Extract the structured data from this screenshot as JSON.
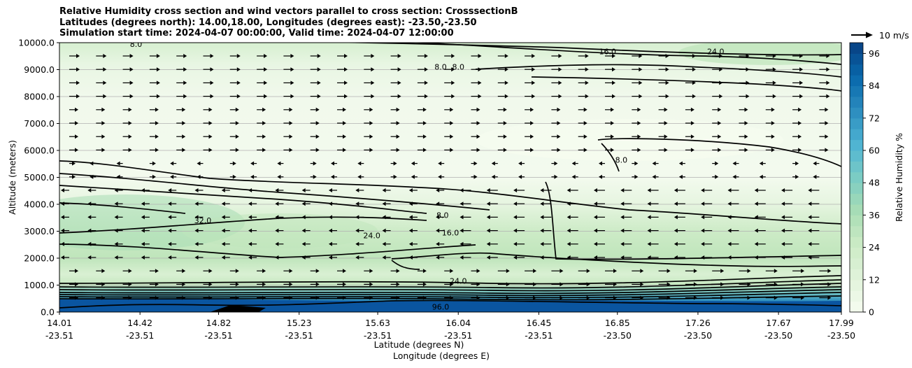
{
  "chart_data": {
    "type": "heatmap",
    "title_lines": [
      "Relative Humidity cross section and wind vectors parallel to cross section: CrosssectionB",
      "Latitudes (degrees north): 14.00,18.00, Longitudes (degrees east): -23.50,-23.50",
      "Simulation start time: 2024-04-07 00:00:00, Valid time: 2024-04-07 12:00:00"
    ],
    "ylabel": "Altitude (meters)",
    "xlabel_lat": "Latitude (degrees N)",
    "xlabel_lon": "Longitude (degrees E)",
    "ylim": [
      0,
      10000
    ],
    "y_ticks": [
      "0.0",
      "1000.0",
      "2000.0",
      "3000.0",
      "4000.0",
      "5000.0",
      "6000.0",
      "7000.0",
      "8000.0",
      "9000.0",
      "10000.0"
    ],
    "y_tick_values": [
      0,
      1000,
      2000,
      3000,
      4000,
      5000,
      6000,
      7000,
      8000,
      9000,
      10000
    ],
    "xlim": [
      14.01,
      17.99
    ],
    "x_ticks": [
      {
        "lat": "14.01",
        "lon": "-23.51",
        "value": 14.01
      },
      {
        "lat": "14.42",
        "lon": "-23.51",
        "value": 14.42
      },
      {
        "lat": "14.82",
        "lon": "-23.51",
        "value": 14.82
      },
      {
        "lat": "15.23",
        "lon": "-23.51",
        "value": 15.23
      },
      {
        "lat": "15.63",
        "lon": "-23.51",
        "value": 15.63
      },
      {
        "lat": "16.04",
        "lon": "-23.51",
        "value": 16.04
      },
      {
        "lat": "16.45",
        "lon": "-23.51",
        "value": 16.45
      },
      {
        "lat": "16.85",
        "lon": "-23.50",
        "value": 16.85
      },
      {
        "lat": "17.26",
        "lon": "-23.50",
        "value": 17.26
      },
      {
        "lat": "17.67",
        "lon": "-23.50",
        "value": 17.67
      },
      {
        "lat": "17.99",
        "lon": "-23.50",
        "value": 17.99
      }
    ],
    "grid": "horizontal",
    "colorbar": {
      "label": "Relative Humidity %",
      "ticks": [
        "0",
        "12",
        "24",
        "36",
        "48",
        "60",
        "72",
        "84",
        "96"
      ],
      "tick_values": [
        0,
        12,
        24,
        36,
        48,
        60,
        72,
        84,
        96
      ],
      "range": [
        0,
        100
      ],
      "colormap": "GnBu",
      "colors": [
        "#f7fcf0",
        "#e0f3db",
        "#ccebc5",
        "#a8ddb5",
        "#7bccc4",
        "#4eb3d3",
        "#2b8cbe",
        "#0868ac",
        "#084081"
      ]
    },
    "quiver_key": "10 m/s",
    "contour_labels": [
      {
        "text": "8.0",
        "lat": 14.4,
        "alt": 9950
      },
      {
        "text": "16.0",
        "lat": 16.8,
        "alt": 9680
      },
      {
        "text": "24.0",
        "lat": 17.35,
        "alt": 9680
      },
      {
        "text": "8.0",
        "lat": 15.95,
        "alt": 9100
      },
      {
        "text": "8.0",
        "lat": 16.04,
        "alt": 9100
      },
      {
        "text": "8.0",
        "lat": 16.87,
        "alt": 5650
      },
      {
        "text": "8.0",
        "lat": 15.96,
        "alt": 3600
      },
      {
        "text": "16.0",
        "lat": 16.0,
        "alt": 2950
      },
      {
        "text": "24.0",
        "lat": 15.6,
        "alt": 2850
      },
      {
        "text": "32.0",
        "lat": 14.74,
        "alt": 3400
      },
      {
        "text": "24.0",
        "lat": 16.04,
        "alt": 1150
      },
      {
        "text": "96.0",
        "lat": 15.95,
        "alt": 200
      }
    ]
  }
}
